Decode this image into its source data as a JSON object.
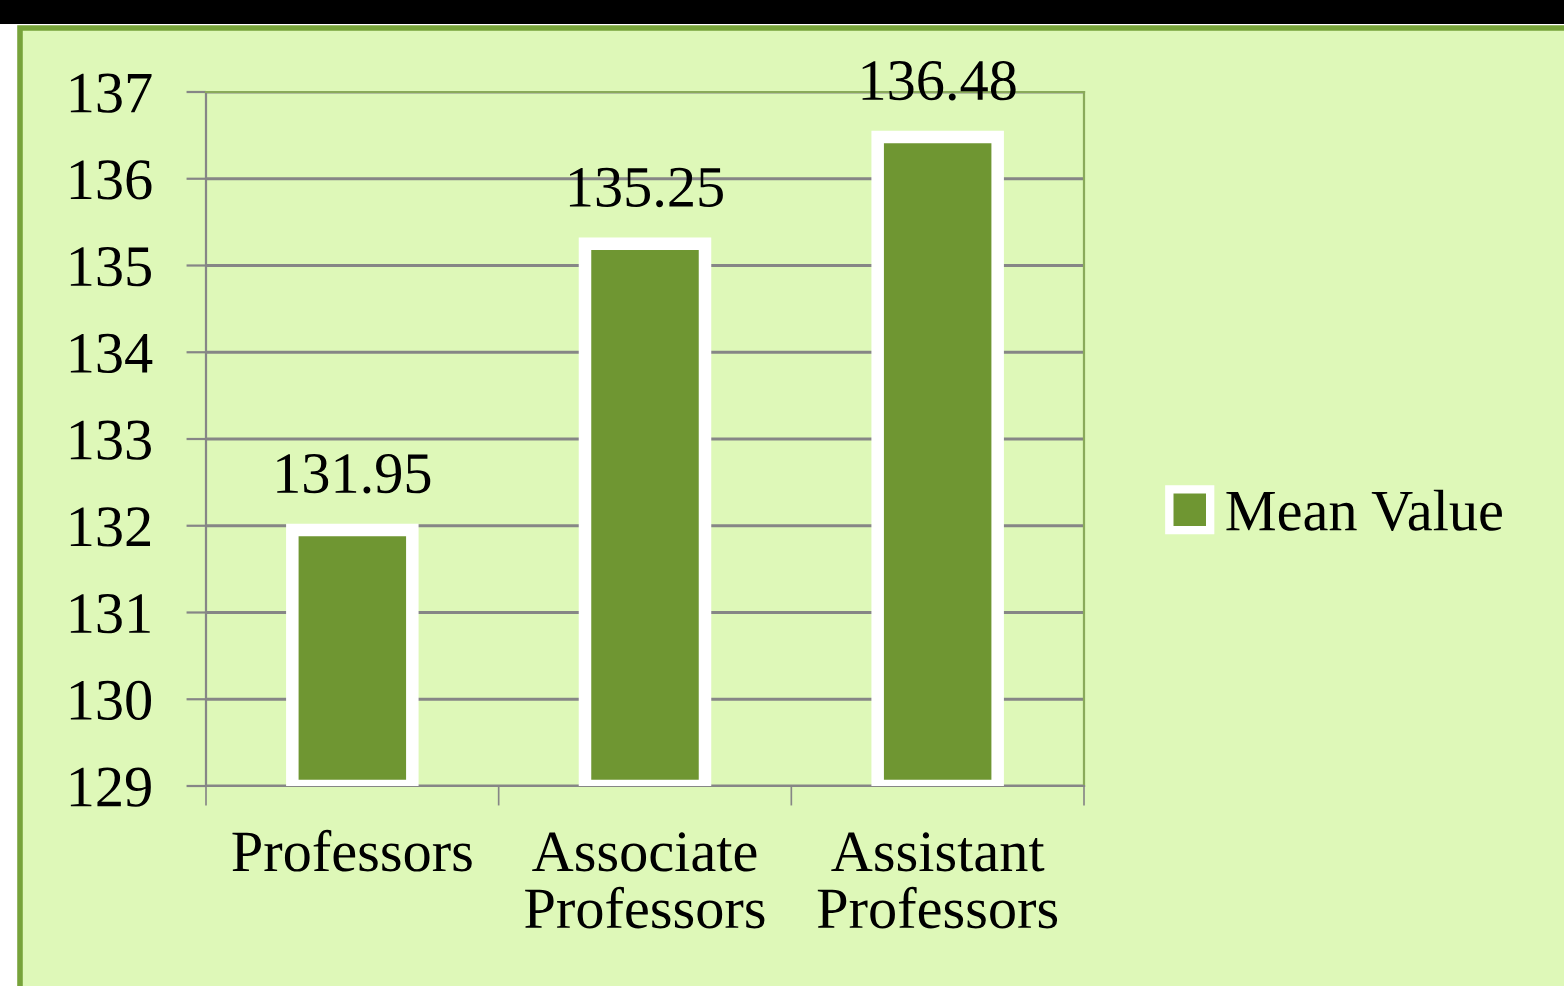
{
  "chart_data": {
    "type": "bar",
    "categories": [
      "Professors",
      "Associate\nProfessors",
      "Assistant\nProfessors"
    ],
    "series": [
      {
        "name": "Mean Value",
        "color": "#6f9632",
        "values": [
          131.95,
          135.25,
          136.48
        ]
      }
    ],
    "ylim": [
      129,
      137
    ],
    "yticks": [
      129,
      130,
      131,
      132,
      133,
      134,
      135,
      136,
      137
    ],
    "grid": "y",
    "legend": "right",
    "data_labels": true
  }
}
